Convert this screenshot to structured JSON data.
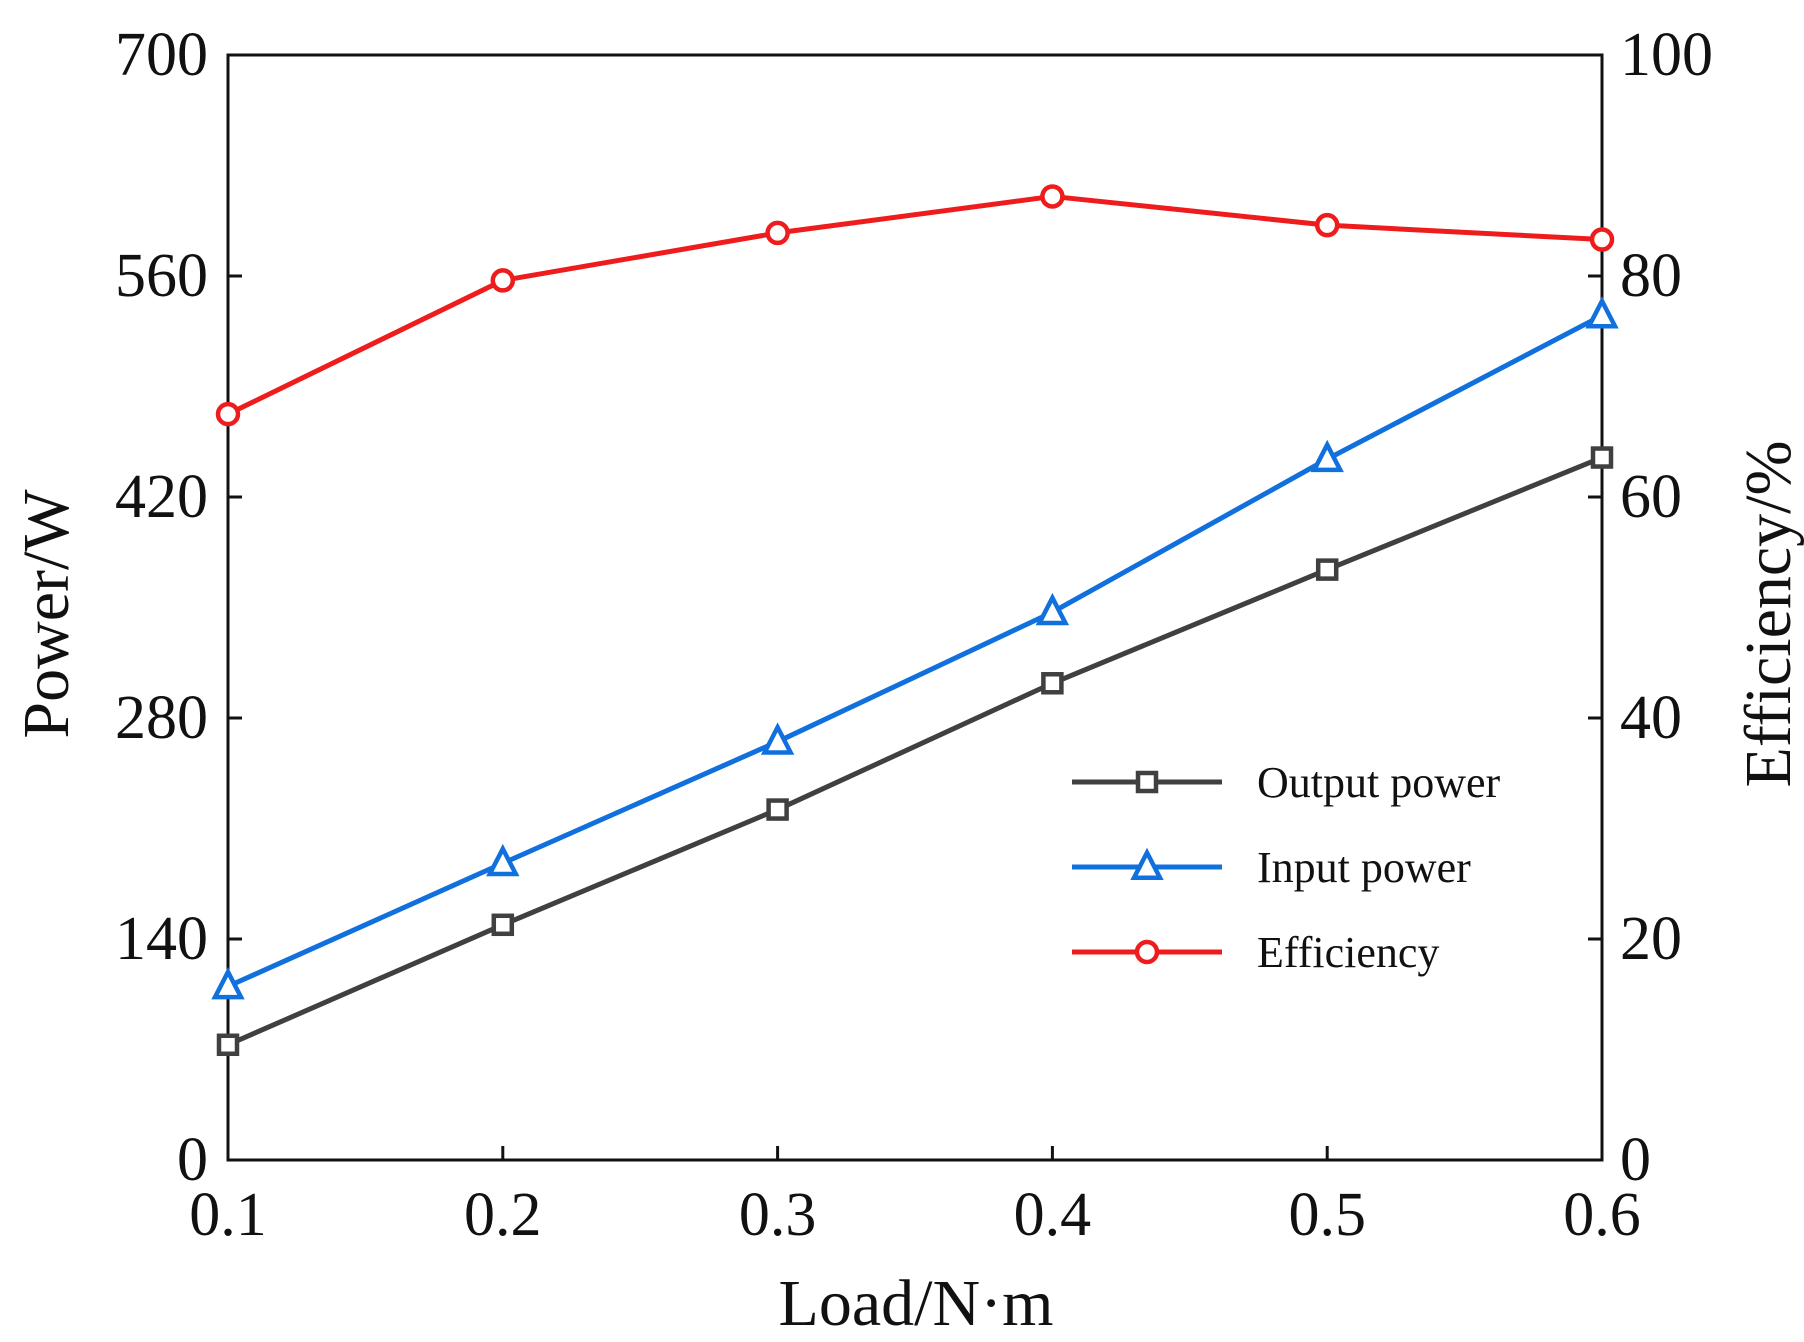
{
  "chart_data": {
    "type": "line",
    "x": [
      0.1,
      0.2,
      0.3,
      0.4,
      0.5,
      0.6
    ],
    "x_tick_labels": [
      "0.1",
      "0.2",
      "0.3",
      "0.4",
      "0.5",
      "0.6"
    ],
    "xlabel": "Load/N·m",
    "ylabel": "Power/W",
    "y2label": "Efficiency/%",
    "xlim": [
      0.1,
      0.6
    ],
    "ylim": [
      0,
      700
    ],
    "y2lim": [
      0,
      100
    ],
    "y_ticks": [
      0,
      140,
      280,
      420,
      560,
      700
    ],
    "y_tick_labels": [
      "0",
      "140",
      "280",
      "420",
      "560",
      "700"
    ],
    "y2_ticks": [
      0,
      20,
      40,
      60,
      80,
      100
    ],
    "y2_tick_labels": [
      "0",
      "20",
      "40",
      "60",
      "80",
      "100"
    ],
    "grid": false,
    "legend_position": "center-right",
    "series": [
      {
        "name": "Output power",
        "axis": "left",
        "marker": "square",
        "color": "#404040",
        "values": [
          73,
          149,
          222,
          302,
          374,
          445
        ]
      },
      {
        "name": "Input power",
        "axis": "left",
        "marker": "triangle",
        "color": "#1070dd",
        "values": [
          110,
          188,
          265,
          347,
          444,
          535
        ]
      },
      {
        "name": "Efficiency",
        "axis": "right",
        "marker": "circle",
        "color": "#ee1c1c",
        "values": [
          67.5,
          79.6,
          83.9,
          87.2,
          84.6,
          83.3
        ]
      }
    ]
  }
}
